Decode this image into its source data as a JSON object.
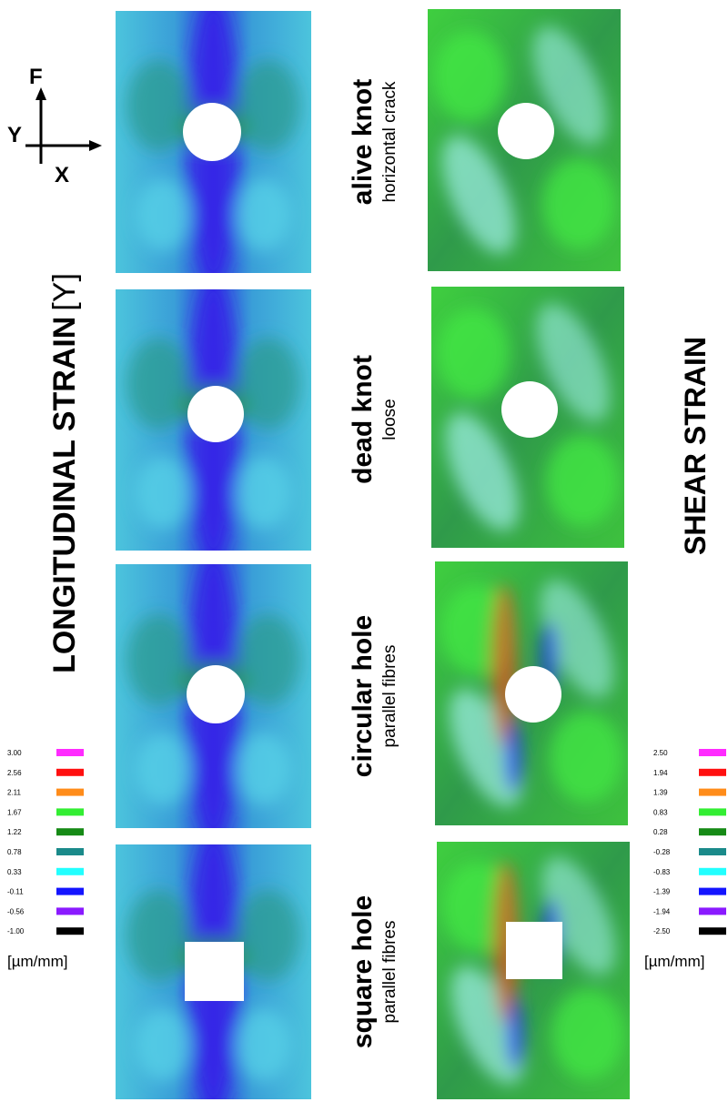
{
  "axes_icon": {
    "f": "F",
    "y": "Y",
    "x": "X"
  },
  "left_title": {
    "text": "LONGITUDINAL STRAIN",
    "suffix": "[Y]"
  },
  "right_title": "SHEAR STRAIN",
  "rows": [
    {
      "name": "alive knot",
      "detail": "horizontal crack"
    },
    {
      "name": "dead knot",
      "detail": "loose"
    },
    {
      "name": "circular hole",
      "detail": "parallel fibres"
    },
    {
      "name": "square hole",
      "detail": "parallel fibres"
    }
  ],
  "legends": [
    {
      "entries": [
        {
          "label": "3.00",
          "color": "#ff2bff"
        },
        {
          "label": "2.56",
          "color": "#ff1010"
        },
        {
          "label": "2.11",
          "color": "#ff8c1a"
        },
        {
          "label": "1.67",
          "color": "#33ee33"
        },
        {
          "label": "1.22",
          "color": "#168a16"
        },
        {
          "label": "0.78",
          "color": "#1a8a8a"
        },
        {
          "label": "0.33",
          "color": "#22ffff"
        },
        {
          "label": "-0.11",
          "color": "#1414ff"
        },
        {
          "label": "-0.56",
          "color": "#8a1aff"
        },
        {
          "label": "-1.00",
          "color": "#000000"
        }
      ],
      "unit": "[µm/mm]"
    },
    {
      "entries": [
        {
          "label": "2.50",
          "color": "#ff2bff"
        },
        {
          "label": "1.94",
          "color": "#ff1010"
        },
        {
          "label": "1.39",
          "color": "#ff8c1a"
        },
        {
          "label": "0.83",
          "color": "#33ee33"
        },
        {
          "label": "0.28",
          "color": "#168a16"
        },
        {
          "label": "-0.28",
          "color": "#1a8a8a"
        },
        {
          "label": "-0.83",
          "color": "#22ffff"
        },
        {
          "label": "-1.39",
          "color": "#1414ff"
        },
        {
          "label": "-1.94",
          "color": "#8a1aff"
        },
        {
          "label": "-2.50",
          "color": "#000000"
        }
      ],
      "unit": "[µm/mm]"
    }
  ]
}
